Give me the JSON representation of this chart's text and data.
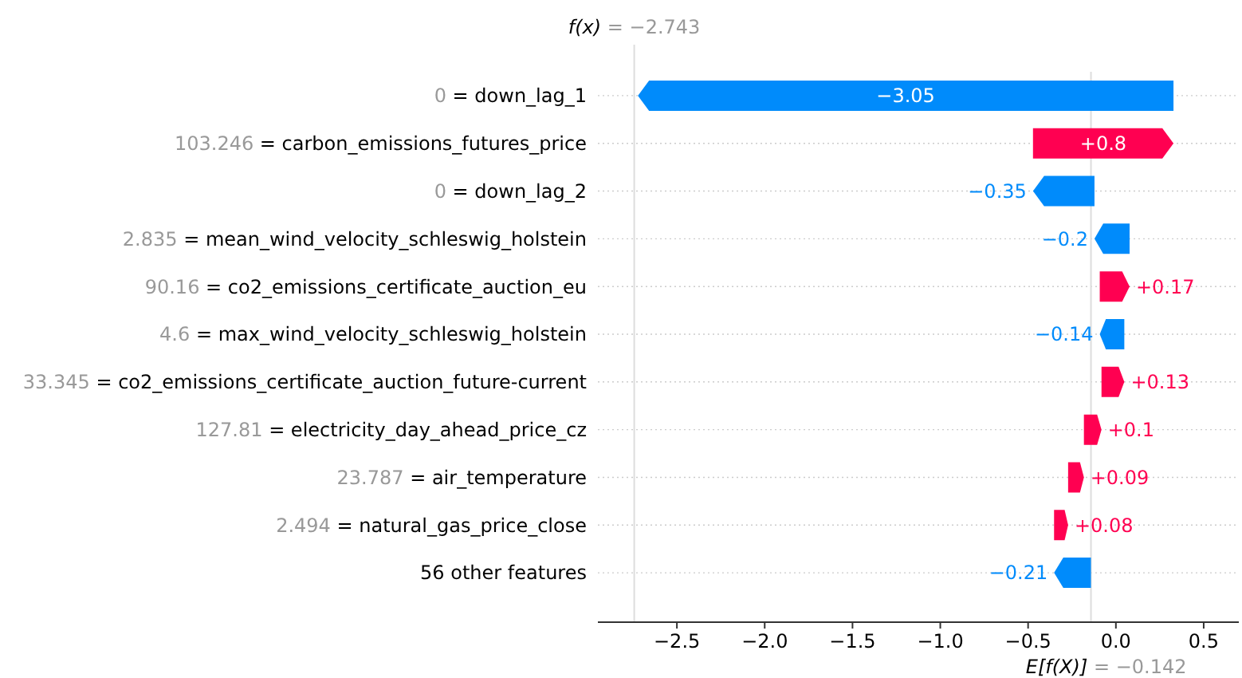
{
  "chart_data": {
    "type": "bar",
    "orientation": "horizontal",
    "categories": [
      "0 = down_lag_1",
      "103.246 = carbon_emissions_futures_price",
      "0 = down_lag_2",
      "2.835 = mean_wind_velocity_schleswig_holstein",
      "90.16 = co2_emissions_certificate_auction_eu",
      "4.6 = max_wind_velocity_schleswig_holstein",
      "33.345 = co2_emissions_certificate_auction_future-current",
      "127.81 = electricity_day_ahead_price_cz",
      "23.787 = air_temperature",
      "2.494 = natural_gas_price_close",
      "56 other features"
    ],
    "values": [
      -3.05,
      0.8,
      -0.35,
      -0.2,
      0.17,
      -0.14,
      0.13,
      0.1,
      0.09,
      0.08,
      -0.21
    ],
    "base": [
      0.328,
      -0.472,
      -0.122,
      0.078,
      -0.092,
      0.048,
      -0.082,
      -0.182,
      -0.272,
      -0.352,
      -0.142
    ],
    "colors": [
      "#008bfb",
      "#ff0051",
      "#008bfb",
      "#008bfb",
      "#ff0051",
      "#008bfb",
      "#ff0051",
      "#ff0051",
      "#ff0051",
      "#ff0051",
      "#008bfb"
    ],
    "value_labels": [
      "−3.05",
      "+0.8",
      "−0.35",
      "−0.2",
      "+0.17",
      "−0.14",
      "+0.13",
      "+0.1",
      "+0.09",
      "+0.08",
      "−0.21"
    ],
    "xlim": [
      -2.95,
      0.7
    ],
    "xticks": [
      {
        "value": -2.5,
        "label": "−2.5"
      },
      {
        "value": -2.0,
        "label": "−2.0"
      },
      {
        "value": -1.5,
        "label": "−1.5"
      },
      {
        "value": -1.0,
        "label": "−1.0"
      },
      {
        "value": -0.5,
        "label": "−0.5"
      },
      {
        "value": 0.0,
        "label": "0.0"
      },
      {
        "value": 0.5,
        "label": "0.5"
      }
    ],
    "grid": "y",
    "ref_lines": [
      {
        "axis": "x",
        "value": -2.743,
        "label": "f(x) = −2.743",
        "color": "#dddddd"
      },
      {
        "axis": "x",
        "value": -0.142,
        "label": "E[f(X)] = −0.142",
        "color": "#dddddd"
      }
    ]
  }
}
